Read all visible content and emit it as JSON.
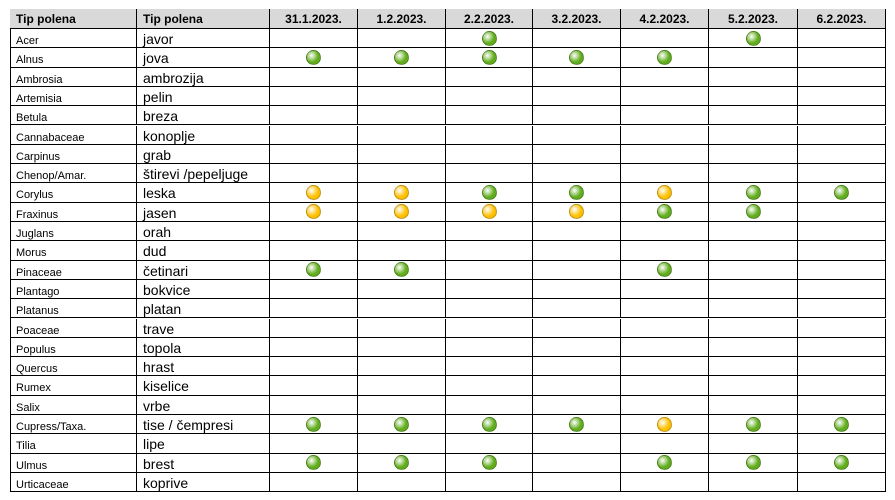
{
  "header": [
    "Tip polena",
    "Tip polena",
    "31.1.2023.",
    "1.2.2023.",
    "2.2.2023.",
    "3.2.2023.",
    "4.2.2023.",
    "5.2.2023.",
    "6.2.2023."
  ],
  "colors": {
    "green": "#62ad1e",
    "yellow": "#ffc000"
  },
  "rows": [
    {
      "latin": "Acer",
      "local": "javor",
      "levels": [
        null,
        null,
        "green",
        null,
        null,
        "green",
        null
      ]
    },
    {
      "latin": "Alnus",
      "local": "jova",
      "levels": [
        "green",
        "green",
        "green",
        "green",
        "green",
        null,
        null
      ]
    },
    {
      "latin": "Ambrosia",
      "local": "ambrozija",
      "levels": [
        null,
        null,
        null,
        null,
        null,
        null,
        null
      ]
    },
    {
      "latin": "Artemisia",
      "local": "pelin",
      "levels": [
        null,
        null,
        null,
        null,
        null,
        null,
        null
      ]
    },
    {
      "latin": "Betula",
      "local": "breza",
      "levels": [
        null,
        null,
        null,
        null,
        null,
        null,
        null
      ]
    },
    {
      "latin": "Cannabaceae",
      "local": "konoplje",
      "levels": [
        null,
        null,
        null,
        null,
        null,
        null,
        null
      ]
    },
    {
      "latin": "Carpinus",
      "local": "grab",
      "levels": [
        null,
        null,
        null,
        null,
        null,
        null,
        null
      ]
    },
    {
      "latin": "Chenop/Amar.",
      "local": "štirevi /pepeljuge",
      "levels": [
        null,
        null,
        null,
        null,
        null,
        null,
        null
      ]
    },
    {
      "latin": "Corylus",
      "local": "leska",
      "levels": [
        "yellow",
        "yellow",
        "green",
        "green",
        "yellow",
        "green",
        "green"
      ]
    },
    {
      "latin": "Fraxinus",
      "local": "jasen",
      "levels": [
        "yellow",
        "yellow",
        "yellow",
        "yellow",
        "green",
        "green",
        null
      ]
    },
    {
      "latin": "Juglans",
      "local": "orah",
      "levels": [
        null,
        null,
        null,
        null,
        null,
        null,
        null
      ]
    },
    {
      "latin": "Morus",
      "local": "dud",
      "levels": [
        null,
        null,
        null,
        null,
        null,
        null,
        null
      ]
    },
    {
      "latin": "Pinaceae",
      "local": "četinari",
      "levels": [
        "green",
        "green",
        null,
        null,
        "green",
        null,
        null
      ]
    },
    {
      "latin": "Plantago",
      "local": "bokvice",
      "levels": [
        null,
        null,
        null,
        null,
        null,
        null,
        null
      ]
    },
    {
      "latin": "Platanus",
      "local": "platan",
      "levels": [
        null,
        null,
        null,
        null,
        null,
        null,
        null
      ]
    },
    {
      "latin": "Poaceae",
      "local": "trave",
      "levels": [
        null,
        null,
        null,
        null,
        null,
        null,
        null
      ]
    },
    {
      "latin": "Populus",
      "local": "topola",
      "levels": [
        null,
        null,
        null,
        null,
        null,
        null,
        null
      ]
    },
    {
      "latin": "Quercus",
      "local": "hrast",
      "levels": [
        null,
        null,
        null,
        null,
        null,
        null,
        null
      ]
    },
    {
      "latin": "Rumex",
      "local": "kiselice",
      "levels": [
        null,
        null,
        null,
        null,
        null,
        null,
        null
      ]
    },
    {
      "latin": "Salix",
      "local": "vrbe",
      "levels": [
        null,
        null,
        null,
        null,
        null,
        null,
        null
      ]
    },
    {
      "latin": "Cupress/Taxa.",
      "local": "tise / čempresi",
      "levels": [
        "green",
        "green",
        "green",
        "green",
        "yellow",
        "green",
        "green"
      ]
    },
    {
      "latin": "Tilia",
      "local": "lipe",
      "levels": [
        null,
        null,
        null,
        null,
        null,
        null,
        null
      ]
    },
    {
      "latin": "Ulmus",
      "local": "brest",
      "levels": [
        "green",
        "green",
        "green",
        null,
        "green",
        "green",
        "green"
      ]
    },
    {
      "latin": "Urticaceae",
      "local": "koprive",
      "levels": [
        null,
        null,
        null,
        null,
        null,
        null,
        null
      ]
    }
  ]
}
